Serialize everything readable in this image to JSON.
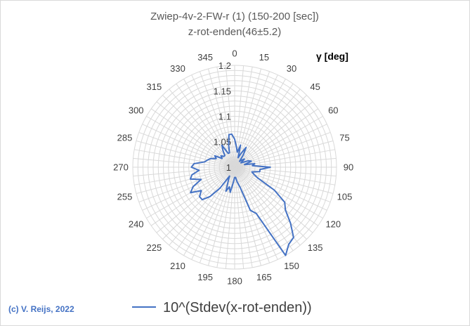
{
  "chart_data": {
    "type": "radar",
    "title": "Zwiep-4v-2-FW-r (1) (150-200 [sec])",
    "subtitle": "z-rot-enden(46±5.2)",
    "angle_unit_label": "γ [deg]",
    "angle_ticks": [
      "0",
      "15",
      "30",
      "45",
      "60",
      "75",
      "90",
      "105",
      "120",
      "135",
      "150",
      "165",
      "180",
      "195",
      "210",
      "225",
      "240",
      "255",
      "270",
      "285",
      "300",
      "315",
      "330",
      "345"
    ],
    "radial_ticks": [
      "1",
      "1.05",
      "1.1",
      "1.15",
      "1.2"
    ],
    "rlim": [
      1.0,
      1.2
    ],
    "angle_step_deg": 5,
    "grid": true,
    "legend_position": "bottom",
    "series": [
      {
        "name": "10^(Stdev(x-rot-enden))",
        "color": "#4472c4",
        "angles_deg": [
          0,
          5,
          10,
          15,
          20,
          25,
          30,
          35,
          40,
          45,
          50,
          55,
          60,
          65,
          70,
          75,
          80,
          85,
          90,
          95,
          100,
          105,
          110,
          115,
          120,
          125,
          130,
          135,
          140,
          145,
          150,
          155,
          160,
          165,
          170,
          175,
          180,
          185,
          190,
          195,
          200,
          205,
          210,
          215,
          220,
          225,
          230,
          235,
          240,
          245,
          250,
          255,
          260,
          265,
          270,
          275,
          280,
          285,
          290,
          295,
          300,
          305,
          310,
          315,
          320,
          325,
          330,
          335,
          340,
          345,
          350,
          355
        ],
        "values": [
          1.055,
          1.04,
          1.03,
          1.045,
          1.02,
          1.03,
          1.045,
          1.03,
          1.015,
          1.02,
          1.025,
          1.015,
          1.02,
          1.03,
          1.035,
          1.02,
          1.04,
          1.035,
          1.07,
          1.05,
          1.05,
          1.035,
          1.04,
          1.05,
          1.09,
          1.12,
          1.13,
          1.155,
          1.18,
          1.185,
          1.2,
          1.1,
          1.09,
          1.04,
          1.03,
          1.02,
          1.02,
          1.03,
          1.05,
          1.04,
          1.05,
          1.03,
          1.02,
          1.05,
          1.075,
          1.09,
          1.09,
          1.08,
          1.1,
          1.09,
          1.07,
          1.09,
          1.085,
          1.07,
          1.085,
          1.08,
          1.06,
          1.055,
          1.05,
          1.04,
          1.045,
          1.03,
          1.035,
          1.03,
          1.03,
          1.04,
          1.05,
          1.03,
          1.03,
          1.045,
          1.065,
          1.065
        ]
      }
    ]
  },
  "credit": "(c) V. Reijs, 2022"
}
